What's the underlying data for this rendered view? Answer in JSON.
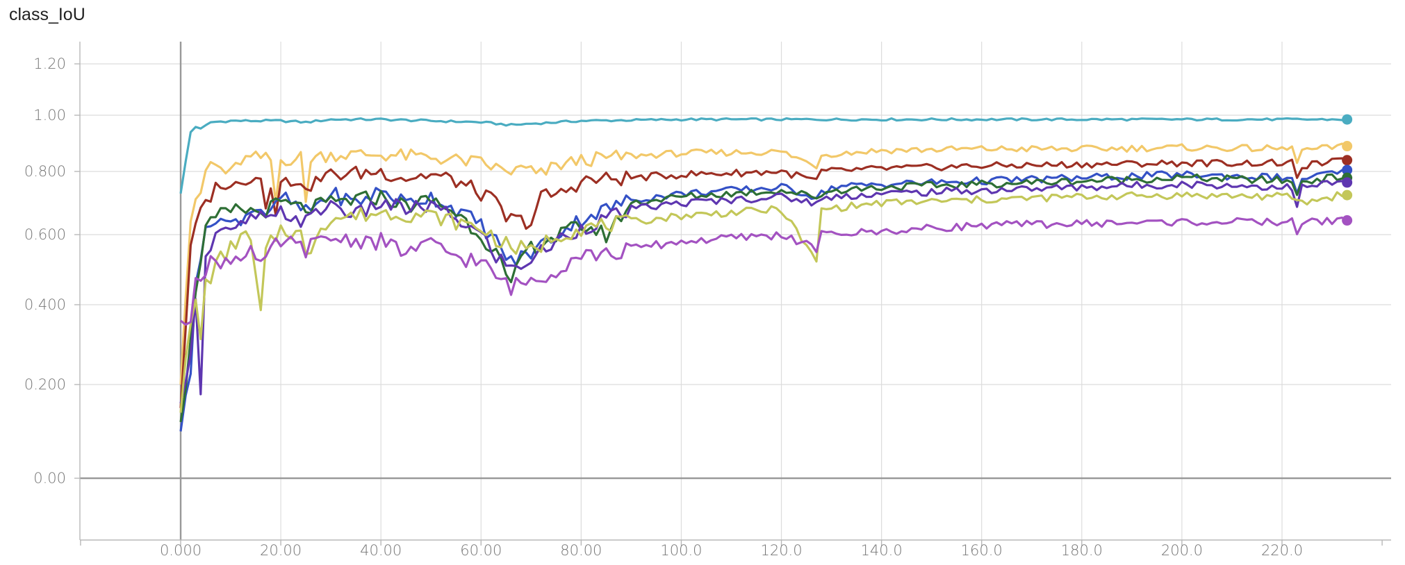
{
  "chart_data": {
    "type": "line",
    "title": "class_IoU",
    "xlabel": "",
    "ylabel": "",
    "xlim": [
      -20,
      240
    ],
    "ylim": [
      -0.17,
      1.3
    ],
    "y_scale": "symlog",
    "grid": true,
    "legend": "none",
    "x_ticks": [
      {
        "value": 0,
        "label": "0.000"
      },
      {
        "value": 20,
        "label": "20.00"
      },
      {
        "value": 40,
        "label": "40.00"
      },
      {
        "value": 60,
        "label": "60.00"
      },
      {
        "value": 80,
        "label": "80.00"
      },
      {
        "value": 100,
        "label": "100.0"
      },
      {
        "value": 120,
        "label": "120.0"
      },
      {
        "value": 140,
        "label": "140.0"
      },
      {
        "value": 160,
        "label": "160.0"
      },
      {
        "value": 180,
        "label": "180.0"
      },
      {
        "value": 200,
        "label": "200.0"
      },
      {
        "value": 220,
        "label": "220.0"
      }
    ],
    "y_ticks": [
      {
        "value": 0,
        "label": "0.00"
      },
      {
        "value": 0.2,
        "label": "0.200"
      },
      {
        "value": 0.4,
        "label": "0.400"
      },
      {
        "value": 0.6,
        "label": "0.600"
      },
      {
        "value": 0.8,
        "label": "0.800"
      },
      {
        "value": 1.0,
        "label": "1.00"
      },
      {
        "value": 1.2,
        "label": "1.20"
      }
    ],
    "x_end": 233,
    "series": [
      {
        "color": "#4AACC1",
        "points": [
          [
            0,
            0.73
          ],
          [
            2,
            0.94
          ],
          [
            3,
            0.96
          ],
          [
            4,
            0.95
          ],
          [
            6,
            0.975
          ],
          [
            10,
            0.98
          ],
          [
            20,
            0.98
          ],
          [
            25,
            0.975
          ],
          [
            30,
            0.985
          ],
          [
            40,
            0.985
          ],
          [
            50,
            0.98
          ],
          [
            60,
            0.975
          ],
          [
            66,
            0.965
          ],
          [
            70,
            0.97
          ],
          [
            80,
            0.98
          ],
          [
            100,
            0.985
          ],
          [
            130,
            0.985
          ],
          [
            160,
            0.985
          ],
          [
            200,
            0.985
          ],
          [
            233,
            0.985
          ]
        ],
        "end": 0.985
      },
      {
        "color": "#F2C869",
        "points": [
          [
            0,
            0.2
          ],
          [
            2,
            0.65
          ],
          [
            4,
            0.73
          ],
          [
            5,
            0.8
          ],
          [
            6,
            0.83
          ],
          [
            8,
            0.81
          ],
          [
            10,
            0.79
          ],
          [
            12,
            0.84
          ],
          [
            16,
            0.85
          ],
          [
            18,
            0.84
          ],
          [
            19,
            0.7
          ],
          [
            20,
            0.84
          ],
          [
            24,
            0.85
          ],
          [
            25,
            0.7
          ],
          [
            26,
            0.85
          ],
          [
            30,
            0.86
          ],
          [
            40,
            0.86
          ],
          [
            50,
            0.85
          ],
          [
            60,
            0.83
          ],
          [
            65,
            0.8
          ],
          [
            70,
            0.81
          ],
          [
            71,
            0.78
          ],
          [
            75,
            0.82
          ],
          [
            80,
            0.84
          ],
          [
            90,
            0.855
          ],
          [
            100,
            0.865
          ],
          [
            120,
            0.87
          ],
          [
            127,
            0.82
          ],
          [
            128,
            0.86
          ],
          [
            140,
            0.875
          ],
          [
            160,
            0.88
          ],
          [
            180,
            0.88
          ],
          [
            200,
            0.885
          ],
          [
            222,
            0.88
          ],
          [
            223,
            0.84
          ],
          [
            224,
            0.875
          ],
          [
            233,
            0.89
          ]
        ],
        "end": 0.89
      },
      {
        "color": "#9C2F23",
        "points": [
          [
            0,
            0.15
          ],
          [
            2,
            0.55
          ],
          [
            3,
            0.63
          ],
          [
            5,
            0.7
          ],
          [
            8,
            0.77
          ],
          [
            10,
            0.74
          ],
          [
            12,
            0.78
          ],
          [
            16,
            0.78
          ],
          [
            17,
            0.7
          ],
          [
            18,
            0.77
          ],
          [
            19,
            0.68
          ],
          [
            20,
            0.76
          ],
          [
            24,
            0.78
          ],
          [
            25,
            0.72
          ],
          [
            26,
            0.76
          ],
          [
            30,
            0.79
          ],
          [
            40,
            0.8
          ],
          [
            45,
            0.78
          ],
          [
            50,
            0.79
          ],
          [
            55,
            0.77
          ],
          [
            60,
            0.73
          ],
          [
            63,
            0.7
          ],
          [
            65,
            0.65
          ],
          [
            70,
            0.64
          ],
          [
            72,
            0.72
          ],
          [
            76,
            0.73
          ],
          [
            80,
            0.77
          ],
          [
            90,
            0.78
          ],
          [
            100,
            0.79
          ],
          [
            120,
            0.8
          ],
          [
            127,
            0.77
          ],
          [
            128,
            0.8
          ],
          [
            140,
            0.81
          ],
          [
            160,
            0.82
          ],
          [
            180,
            0.825
          ],
          [
            200,
            0.83
          ],
          [
            222,
            0.83
          ],
          [
            223,
            0.77
          ],
          [
            224,
            0.82
          ],
          [
            233,
            0.84
          ]
        ],
        "end": 0.84
      },
      {
        "color": "#3451C6",
        "points": [
          [
            0,
            0.1
          ],
          [
            2,
            0.25
          ],
          [
            3,
            0.48
          ],
          [
            5,
            0.6
          ],
          [
            7,
            0.66
          ],
          [
            10,
            0.63
          ],
          [
            15,
            0.69
          ],
          [
            18,
            0.66
          ],
          [
            20,
            0.72
          ],
          [
            25,
            0.67
          ],
          [
            30,
            0.73
          ],
          [
            35,
            0.7
          ],
          [
            40,
            0.74
          ],
          [
            45,
            0.7
          ],
          [
            50,
            0.72
          ],
          [
            55,
            0.68
          ],
          [
            60,
            0.63
          ],
          [
            63,
            0.58
          ],
          [
            66,
            0.52
          ],
          [
            70,
            0.55
          ],
          [
            75,
            0.6
          ],
          [
            80,
            0.65
          ],
          [
            90,
            0.71
          ],
          [
            100,
            0.73
          ],
          [
            120,
            0.75
          ],
          [
            127,
            0.72
          ],
          [
            130,
            0.75
          ],
          [
            140,
            0.76
          ],
          [
            160,
            0.77
          ],
          [
            180,
            0.78
          ],
          [
            200,
            0.79
          ],
          [
            222,
            0.78
          ],
          [
            223,
            0.72
          ],
          [
            224,
            0.78
          ],
          [
            233,
            0.8
          ]
        ],
        "end": 0.805
      },
      {
        "color": "#2E6F35",
        "points": [
          [
            0,
            0.12
          ],
          [
            2,
            0.3
          ],
          [
            3,
            0.45
          ],
          [
            5,
            0.62
          ],
          [
            8,
            0.66
          ],
          [
            12,
            0.68
          ],
          [
            16,
            0.67
          ],
          [
            20,
            0.7
          ],
          [
            25,
            0.68
          ],
          [
            30,
            0.7
          ],
          [
            40,
            0.72
          ],
          [
            45,
            0.69
          ],
          [
            50,
            0.71
          ],
          [
            55,
            0.67
          ],
          [
            60,
            0.6
          ],
          [
            63,
            0.55
          ],
          [
            66,
            0.44
          ],
          [
            68,
            0.54
          ],
          [
            72,
            0.58
          ],
          [
            76,
            0.6
          ],
          [
            80,
            0.63
          ],
          [
            85,
            0.6
          ],
          [
            90,
            0.7
          ],
          [
            100,
            0.72
          ],
          [
            120,
            0.74
          ],
          [
            127,
            0.72
          ],
          [
            130,
            0.74
          ],
          [
            140,
            0.75
          ],
          [
            160,
            0.76
          ],
          [
            180,
            0.77
          ],
          [
            200,
            0.78
          ],
          [
            222,
            0.77
          ],
          [
            223,
            0.72
          ],
          [
            224,
            0.77
          ],
          [
            233,
            0.785
          ]
        ],
        "end": 0.78
      },
      {
        "color": "#5E36B0",
        "points": [
          [
            0,
            0.16
          ],
          [
            2,
            0.3
          ],
          [
            3,
            0.4
          ],
          [
            4,
            0.2
          ],
          [
            5,
            0.55
          ],
          [
            8,
            0.62
          ],
          [
            10,
            0.6
          ],
          [
            15,
            0.66
          ],
          [
            18,
            0.64
          ],
          [
            20,
            0.67
          ],
          [
            25,
            0.64
          ],
          [
            30,
            0.7
          ],
          [
            35,
            0.66
          ],
          [
            40,
            0.7
          ],
          [
            45,
            0.68
          ],
          [
            50,
            0.69
          ],
          [
            55,
            0.65
          ],
          [
            60,
            0.6
          ],
          [
            63,
            0.54
          ],
          [
            66,
            0.5
          ],
          [
            70,
            0.53
          ],
          [
            75,
            0.58
          ],
          [
            80,
            0.62
          ],
          [
            90,
            0.68
          ],
          [
            100,
            0.7
          ],
          [
            120,
            0.72
          ],
          [
            127,
            0.7
          ],
          [
            130,
            0.72
          ],
          [
            140,
            0.73
          ],
          [
            160,
            0.74
          ],
          [
            180,
            0.75
          ],
          [
            200,
            0.76
          ],
          [
            222,
            0.75
          ],
          [
            223,
            0.68
          ],
          [
            224,
            0.75
          ],
          [
            233,
            0.77
          ]
        ],
        "end": 0.765
      },
      {
        "color": "#C3C759",
        "points": [
          [
            0,
            0.14
          ],
          [
            2,
            0.35
          ],
          [
            3,
            0.4
          ],
          [
            4,
            0.32
          ],
          [
            5,
            0.46
          ],
          [
            8,
            0.53
          ],
          [
            10,
            0.56
          ],
          [
            12,
            0.6
          ],
          [
            14,
            0.58
          ],
          [
            16,
            0.37
          ],
          [
            17,
            0.55
          ],
          [
            20,
            0.62
          ],
          [
            24,
            0.6
          ],
          [
            25,
            0.53
          ],
          [
            28,
            0.63
          ],
          [
            30,
            0.65
          ],
          [
            40,
            0.67
          ],
          [
            50,
            0.66
          ],
          [
            60,
            0.62
          ],
          [
            65,
            0.57
          ],
          [
            70,
            0.55
          ],
          [
            75,
            0.6
          ],
          [
            80,
            0.62
          ],
          [
            90,
            0.64
          ],
          [
            100,
            0.66
          ],
          [
            120,
            0.68
          ],
          [
            127,
            0.52
          ],
          [
            128,
            0.68
          ],
          [
            140,
            0.7
          ],
          [
            160,
            0.71
          ],
          [
            180,
            0.72
          ],
          [
            200,
            0.725
          ],
          [
            222,
            0.72
          ],
          [
            224,
            0.7
          ],
          [
            233,
            0.73
          ]
        ],
        "end": 0.725
      },
      {
        "color": "#A352C1",
        "points": [
          [
            0,
            0.36
          ],
          [
            2,
            0.37
          ],
          [
            3,
            0.5
          ],
          [
            5,
            0.48
          ],
          [
            6,
            0.52
          ],
          [
            10,
            0.53
          ],
          [
            14,
            0.56
          ],
          [
            16,
            0.5
          ],
          [
            18,
            0.55
          ],
          [
            20,
            0.58
          ],
          [
            25,
            0.56
          ],
          [
            30,
            0.59
          ],
          [
            40,
            0.58
          ],
          [
            45,
            0.55
          ],
          [
            50,
            0.57
          ],
          [
            55,
            0.54
          ],
          [
            60,
            0.52
          ],
          [
            63,
            0.48
          ],
          [
            66,
            0.45
          ],
          [
            70,
            0.47
          ],
          [
            75,
            0.5
          ],
          [
            80,
            0.55
          ],
          [
            85,
            0.54
          ],
          [
            90,
            0.56
          ],
          [
            100,
            0.58
          ],
          [
            120,
            0.6
          ],
          [
            127,
            0.56
          ],
          [
            128,
            0.6
          ],
          [
            140,
            0.61
          ],
          [
            160,
            0.63
          ],
          [
            180,
            0.635
          ],
          [
            200,
            0.64
          ],
          [
            222,
            0.64
          ],
          [
            223,
            0.61
          ],
          [
            224,
            0.64
          ],
          [
            233,
            0.645
          ]
        ],
        "end": 0.645
      }
    ]
  }
}
